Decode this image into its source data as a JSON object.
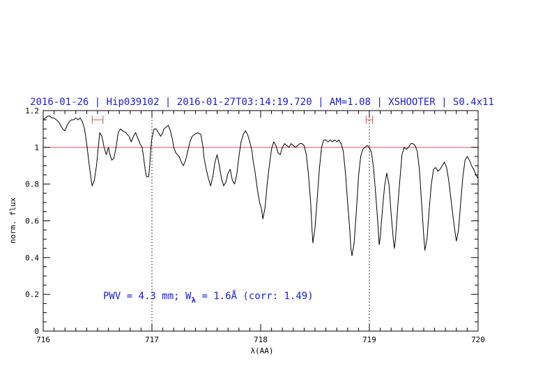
{
  "chart_data": {
    "type": "line",
    "title": "2016-01-26 | Hip039102 | 2016-01-27T03:14:19.720 | AM=1.08 | XSHOOTER | S0.4x11",
    "xlabel": "λ(AA)",
    "ylabel": "norm. flux",
    "xlim": [
      716,
      720
    ],
    "ylim": [
      0,
      1.2
    ],
    "xticks": [
      716,
      717,
      718,
      719,
      720
    ],
    "xtick_labels": [
      "716",
      "717",
      "718",
      "719",
      "720"
    ],
    "yticks": [
      0,
      0.2,
      0.4,
      0.6,
      0.8,
      1,
      1.2
    ],
    "ytick_labels": [
      "0",
      "0.2",
      "0.4",
      "0.6",
      "0.8",
      "1",
      "1.2"
    ],
    "reference_line": {
      "y": 1.0,
      "color": "#e05050"
    },
    "vertical_markers": [
      717.0,
      719.0
    ],
    "range_markers": [
      {
        "x_start": 716.45,
        "x_end": 716.55,
        "y": 1.15
      },
      {
        "x_start": 718.97,
        "x_end": 719.03,
        "y": 1.15
      }
    ],
    "annotation": {
      "prefix": "PWV = 4.3 mm; W",
      "subscript": "λ",
      "suffix": " = 1.6Å (corr: 1.49)"
    },
    "series": [
      {
        "color": "#000000",
        "points": [
          [
            716.0,
            1.15
          ],
          [
            716.02,
            1.16
          ],
          [
            716.04,
            1.17
          ],
          [
            716.06,
            1.17
          ],
          [
            716.08,
            1.16
          ],
          [
            716.1,
            1.16
          ],
          [
            716.12,
            1.15
          ],
          [
            716.14,
            1.14
          ],
          [
            716.16,
            1.12
          ],
          [
            716.18,
            1.1
          ],
          [
            716.2,
            1.09
          ],
          [
            716.22,
            1.12
          ],
          [
            716.24,
            1.14
          ],
          [
            716.26,
            1.15
          ],
          [
            716.28,
            1.15
          ],
          [
            716.3,
            1.16
          ],
          [
            716.32,
            1.15
          ],
          [
            716.34,
            1.16
          ],
          [
            716.36,
            1.14
          ],
          [
            716.38,
            1.1
          ],
          [
            716.4,
            1.02
          ],
          [
            716.42,
            0.92
          ],
          [
            716.435,
            0.85
          ],
          [
            716.45,
            0.79
          ],
          [
            716.47,
            0.82
          ],
          [
            716.49,
            0.9
          ],
          [
            716.51,
            1.02
          ],
          [
            716.52,
            1.08
          ],
          [
            716.54,
            1.06
          ],
          [
            716.56,
            1.0
          ],
          [
            716.58,
            0.96
          ],
          [
            716.6,
            1.0
          ],
          [
            716.61,
            0.97
          ],
          [
            716.63,
            0.93
          ],
          [
            716.65,
            0.94
          ],
          [
            716.67,
            1.0
          ],
          [
            716.69,
            1.08
          ],
          [
            716.71,
            1.1
          ],
          [
            716.73,
            1.09
          ],
          [
            716.76,
            1.08
          ],
          [
            716.79,
            1.06
          ],
          [
            716.81,
            1.03
          ],
          [
            716.83,
            1.06
          ],
          [
            716.85,
            1.08
          ],
          [
            716.87,
            1.05
          ],
          [
            716.89,
            1.02
          ],
          [
            716.91,
            1.0
          ],
          [
            716.92,
            0.96
          ],
          [
            716.94,
            0.87
          ],
          [
            716.95,
            0.84
          ],
          [
            716.97,
            0.84
          ],
          [
            716.98,
            0.9
          ],
          [
            716.99,
            1.0
          ],
          [
            717.0,
            1.05
          ],
          [
            717.02,
            1.1
          ],
          [
            717.04,
            1.1
          ],
          [
            717.06,
            1.08
          ],
          [
            717.08,
            1.06
          ],
          [
            717.1,
            1.08
          ],
          [
            717.11,
            1.1
          ],
          [
            717.13,
            1.11
          ],
          [
            717.15,
            1.12
          ],
          [
            717.17,
            1.09
          ],
          [
            717.19,
            1.04
          ],
          [
            717.2,
            1.0
          ],
          [
            717.22,
            0.97
          ],
          [
            717.25,
            0.95
          ],
          [
            717.27,
            0.92
          ],
          [
            717.29,
            0.9
          ],
          [
            717.31,
            0.93
          ],
          [
            717.33,
            0.98
          ],
          [
            717.35,
            1.03
          ],
          [
            717.37,
            1.06
          ],
          [
            717.39,
            1.07
          ],
          [
            717.42,
            1.08
          ],
          [
            717.45,
            1.07
          ],
          [
            717.47,
            1.0
          ],
          [
            717.48,
            0.94
          ],
          [
            717.5,
            0.88
          ],
          [
            717.52,
            0.83
          ],
          [
            717.54,
            0.79
          ],
          [
            717.56,
            0.84
          ],
          [
            717.58,
            0.92
          ],
          [
            717.6,
            0.96
          ],
          [
            717.62,
            0.9
          ],
          [
            717.64,
            0.83
          ],
          [
            717.66,
            0.79
          ],
          [
            717.68,
            0.81
          ],
          [
            717.7,
            0.86
          ],
          [
            717.72,
            0.88
          ],
          [
            717.74,
            0.82
          ],
          [
            717.76,
            0.8
          ],
          [
            717.78,
            0.85
          ],
          [
            717.8,
            0.95
          ],
          [
            717.82,
            1.03
          ],
          [
            717.84,
            1.07
          ],
          [
            717.86,
            1.09
          ],
          [
            717.88,
            1.07
          ],
          [
            717.9,
            1.03
          ],
          [
            717.92,
            0.98
          ],
          [
            717.93,
            0.93
          ],
          [
            717.95,
            0.86
          ],
          [
            717.97,
            0.77
          ],
          [
            717.99,
            0.7
          ],
          [
            718.01,
            0.66
          ],
          [
            718.02,
            0.61
          ],
          [
            718.04,
            0.67
          ],
          [
            718.06,
            0.8
          ],
          [
            718.08,
            0.9
          ],
          [
            718.1,
            0.99
          ],
          [
            718.12,
            1.03
          ],
          [
            718.14,
            1.01
          ],
          [
            718.16,
            0.97
          ],
          [
            718.18,
            0.96
          ],
          [
            718.2,
            1.0
          ],
          [
            718.22,
            1.02
          ],
          [
            718.24,
            1.01
          ],
          [
            718.26,
            1.0
          ],
          [
            718.28,
            1.02
          ],
          [
            718.3,
            1.01
          ],
          [
            718.32,
            1.0
          ],
          [
            718.34,
            1.01
          ],
          [
            718.36,
            1.02
          ],
          [
            718.38,
            1.02
          ],
          [
            718.4,
            1.01
          ],
          [
            718.42,
            0.96
          ],
          [
            718.44,
            0.85
          ],
          [
            718.46,
            0.7
          ],
          [
            718.47,
            0.58
          ],
          [
            718.48,
            0.48
          ],
          [
            718.5,
            0.56
          ],
          [
            718.52,
            0.72
          ],
          [
            718.54,
            0.88
          ],
          [
            718.56,
            1.0
          ],
          [
            718.58,
            1.04
          ],
          [
            718.6,
            1.04
          ],
          [
            718.62,
            1.03
          ],
          [
            718.64,
            1.04
          ],
          [
            718.66,
            1.03
          ],
          [
            718.68,
            1.04
          ],
          [
            718.7,
            1.03
          ],
          [
            718.72,
            1.04
          ],
          [
            718.74,
            1.02
          ],
          [
            718.76,
            0.98
          ],
          [
            718.78,
            0.86
          ],
          [
            718.8,
            0.7
          ],
          [
            718.82,
            0.55
          ],
          [
            718.83,
            0.45
          ],
          [
            718.84,
            0.41
          ],
          [
            718.86,
            0.48
          ],
          [
            718.88,
            0.65
          ],
          [
            718.9,
            0.84
          ],
          [
            718.92,
            0.95
          ],
          [
            718.94,
            0.99
          ],
          [
            718.96,
            1.0
          ],
          [
            718.98,
            1.01
          ],
          [
            719.0,
            1.0
          ],
          [
            719.02,
            0.97
          ],
          [
            719.04,
            0.88
          ],
          [
            719.06,
            0.73
          ],
          [
            719.08,
            0.57
          ],
          [
            719.09,
            0.47
          ],
          [
            719.1,
            0.51
          ],
          [
            719.12,
            0.66
          ],
          [
            719.14,
            0.79
          ],
          [
            719.16,
            0.86
          ],
          [
            719.18,
            0.8
          ],
          [
            719.2,
            0.64
          ],
          [
            719.22,
            0.5
          ],
          [
            719.23,
            0.45
          ],
          [
            719.24,
            0.5
          ],
          [
            719.26,
            0.67
          ],
          [
            719.28,
            0.82
          ],
          [
            719.3,
            0.96
          ],
          [
            719.32,
            1.0
          ],
          [
            719.34,
            0.99
          ],
          [
            719.36,
            1.0
          ],
          [
            719.38,
            1.02
          ],
          [
            719.4,
            1.02
          ],
          [
            719.42,
            1.01
          ],
          [
            719.44,
            0.98
          ],
          [
            719.46,
            0.88
          ],
          [
            719.48,
            0.7
          ],
          [
            719.5,
            0.52
          ],
          [
            719.51,
            0.44
          ],
          [
            719.53,
            0.5
          ],
          [
            719.55,
            0.66
          ],
          [
            719.57,
            0.8
          ],
          [
            719.59,
            0.88
          ],
          [
            719.61,
            0.89
          ],
          [
            719.63,
            0.87
          ],
          [
            719.65,
            0.88
          ],
          [
            719.67,
            0.9
          ],
          [
            719.69,
            0.92
          ],
          [
            719.71,
            0.89
          ],
          [
            719.73,
            0.82
          ],
          [
            719.75,
            0.72
          ],
          [
            719.77,
            0.62
          ],
          [
            719.79,
            0.53
          ],
          [
            719.8,
            0.49
          ],
          [
            719.82,
            0.55
          ],
          [
            719.84,
            0.7
          ],
          [
            719.86,
            0.84
          ],
          [
            719.88,
            0.93
          ],
          [
            719.9,
            0.95
          ],
          [
            719.92,
            0.93
          ],
          [
            719.94,
            0.9
          ],
          [
            719.96,
            0.88
          ],
          [
            719.98,
            0.85
          ],
          [
            720.0,
            0.83
          ]
        ]
      }
    ],
    "reference_values": [
      [
        716.0,
        1.0
      ],
      [
        717.0,
        1.0
      ],
      [
        718.0,
        1.0
      ],
      [
        719.0,
        1.0
      ],
      [
        720.0,
        1.0
      ]
    ]
  },
  "colors": {
    "title": "#1a1aee",
    "annotation": "#1a1aee",
    "reference_line": "#e05050",
    "range_markers": "#e05050",
    "axes": "#000000"
  }
}
